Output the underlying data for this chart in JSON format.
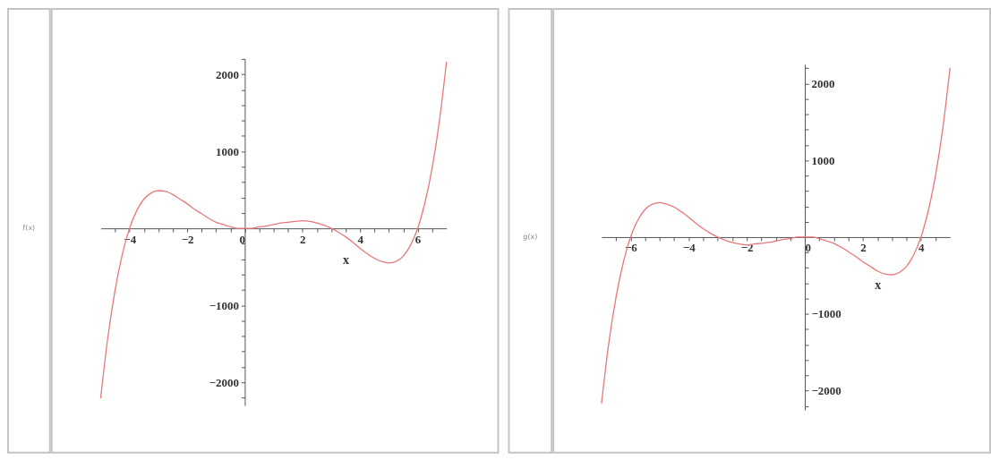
{
  "chart_data": [
    {
      "type": "line",
      "xlabel": "x",
      "ylabel": "f(x)",
      "xlim": [
        -5,
        7
      ],
      "ylim": [
        -2300,
        2200
      ],
      "xticks": [
        {
          "value": -4.5,
          "label": null
        },
        -4,
        {
          "value": -3.5,
          "label": null
        },
        {
          "value": -3,
          "label": null
        },
        {
          "value": -2.5,
          "label": null
        },
        -2,
        {
          "value": -1.5,
          "label": null
        },
        {
          "value": -1,
          "label": null
        },
        {
          "value": -0.5,
          "label": null
        },
        0,
        {
          "value": 0.5,
          "label": null
        },
        {
          "value": 1,
          "label": null
        },
        {
          "value": 1.5,
          "label": null
        },
        2,
        {
          "value": 2.5,
          "label": null
        },
        {
          "value": 3,
          "label": null
        },
        {
          "value": 3.5,
          "label": null
        },
        4,
        {
          "value": 4.5,
          "label": null
        },
        {
          "value": 5,
          "label": null
        },
        {
          "value": 5.5,
          "label": null
        },
        6,
        {
          "value": 6.5,
          "label": null
        }
      ],
      "yticks": [
        {
          "value": -2200,
          "label": null
        },
        -2000,
        {
          "value": -1800,
          "label": null
        },
        {
          "value": -1600,
          "label": null
        },
        {
          "value": -1400,
          "label": null
        },
        {
          "value": -1200,
          "label": null
        },
        -1000,
        {
          "value": -800,
          "label": null
        },
        {
          "value": -600,
          "label": null
        },
        {
          "value": -400,
          "label": null
        },
        {
          "value": -200,
          "label": null
        },
        {
          "value": 200,
          "label": null
        },
        {
          "value": 400,
          "label": null
        },
        {
          "value": 600,
          "label": null
        },
        {
          "value": 800,
          "label": null
        },
        1000,
        {
          "value": 1200,
          "label": null
        },
        {
          "value": 1400,
          "label": null
        },
        {
          "value": 1600,
          "label": null
        },
        {
          "value": 1800,
          "label": null
        },
        2000,
        {
          "value": 2200,
          "label": null
        }
      ],
      "x": [
        -5,
        -4.75,
        -4.5,
        -4.25,
        -4,
        -3.75,
        -3.5,
        -3.25,
        -3,
        -2.75,
        -2.5,
        -2.25,
        -2,
        -1.75,
        -1.5,
        -1.25,
        -1,
        -0.75,
        -0.5,
        -0.25,
        0,
        0.25,
        0.5,
        0.75,
        1,
        1.25,
        1.5,
        1.75,
        2,
        2.25,
        2.5,
        2.75,
        3,
        3.25,
        3.5,
        3.75,
        4,
        4.25,
        4.5,
        4.75,
        5,
        5.25,
        5.5,
        5.75,
        6,
        6.25,
        6.5,
        6.75,
        7
      ],
      "series": [
        {
          "color": "#e8777a",
          "values": [
            -2200,
            -1410,
            -800,
            -340,
            0,
            230,
            380,
            460,
            490,
            480,
            440,
            380,
            320,
            250,
            190,
            130,
            80,
            50,
            20,
            0,
            0,
            0,
            20,
            30,
            50,
            70,
            80,
            90,
            100,
            90,
            70,
            40,
            0,
            -50,
            -110,
            -180,
            -260,
            -330,
            -390,
            -430,
            -450,
            -430,
            -360,
            -220,
            0,
            330,
            780,
            1380,
            2160
          ]
        }
      ],
      "grid": false
    },
    {
      "type": "line",
      "xlabel": "x",
      "ylabel": "g(x)",
      "xlim": [
        -7,
        5
      ],
      "ylim": [
        -2250,
        2250
      ],
      "xticks": [
        {
          "value": -6.5,
          "label": null
        },
        -6,
        {
          "value": -5.5,
          "label": null
        },
        {
          "value": -5,
          "label": null
        },
        {
          "value": -4.5,
          "label": null
        },
        -4,
        {
          "value": -3.5,
          "label": null
        },
        {
          "value": -3,
          "label": null
        },
        {
          "value": -2.5,
          "label": null
        },
        -2,
        {
          "value": -1.5,
          "label": null
        },
        {
          "value": -1,
          "label": null
        },
        {
          "value": -0.5,
          "label": null
        },
        0,
        {
          "value": 0.5,
          "label": null
        },
        {
          "value": 1,
          "label": null
        },
        {
          "value": 1.5,
          "label": null
        },
        2,
        {
          "value": 2.5,
          "label": null
        },
        {
          "value": 3,
          "label": null
        },
        {
          "value": 3.5,
          "label": null
        },
        4,
        {
          "value": 4.5,
          "label": null
        }
      ],
      "yticks": [
        {
          "value": -2200,
          "label": null
        },
        -2000,
        {
          "value": -1800,
          "label": null
        },
        {
          "value": -1600,
          "label": null
        },
        {
          "value": -1400,
          "label": null
        },
        {
          "value": -1200,
          "label": null
        },
        -1000,
        {
          "value": -800,
          "label": null
        },
        {
          "value": -600,
          "label": null
        },
        {
          "value": -400,
          "label": null
        },
        {
          "value": -200,
          "label": null
        },
        {
          "value": 200,
          "label": null
        },
        {
          "value": 400,
          "label": null
        },
        {
          "value": 600,
          "label": null
        },
        {
          "value": 800,
          "label": null
        },
        1000,
        {
          "value": 1200,
          "label": null
        },
        {
          "value": 1400,
          "label": null
        },
        {
          "value": 1600,
          "label": null
        },
        {
          "value": 1800,
          "label": null
        },
        2000,
        {
          "value": 2200,
          "label": null
        }
      ],
      "x": [
        -7,
        -6.75,
        -6.5,
        -6.25,
        -6,
        -5.75,
        -5.5,
        -5.25,
        -5,
        -4.75,
        -4.5,
        -4.25,
        -4,
        -3.75,
        -3.5,
        -3.25,
        -3,
        -2.75,
        -2.5,
        -2.25,
        -2,
        -1.75,
        -1.5,
        -1.25,
        -1,
        -0.75,
        -0.5,
        -0.25,
        0,
        0.25,
        0.5,
        0.75,
        1,
        1.25,
        1.5,
        1.75,
        2,
        2.25,
        2.5,
        2.75,
        3,
        3.25,
        3.5,
        3.75,
        4,
        4.25,
        4.5,
        4.75,
        5
      ],
      "series": [
        {
          "color": "#e8777a",
          "values": [
            -2160,
            -1380,
            -780,
            -330,
            0,
            220,
            360,
            430,
            450,
            430,
            390,
            330,
            260,
            180,
            110,
            50,
            0,
            -40,
            -70,
            -90,
            -100,
            -90,
            -80,
            -70,
            -50,
            -30,
            -20,
            0,
            0,
            0,
            -20,
            -50,
            -80,
            -130,
            -190,
            -250,
            -320,
            -380,
            -440,
            -480,
            -490,
            -460,
            -380,
            -230,
            0,
            340,
            800,
            1410,
            2200
          ]
        }
      ],
      "grid": false
    }
  ]
}
